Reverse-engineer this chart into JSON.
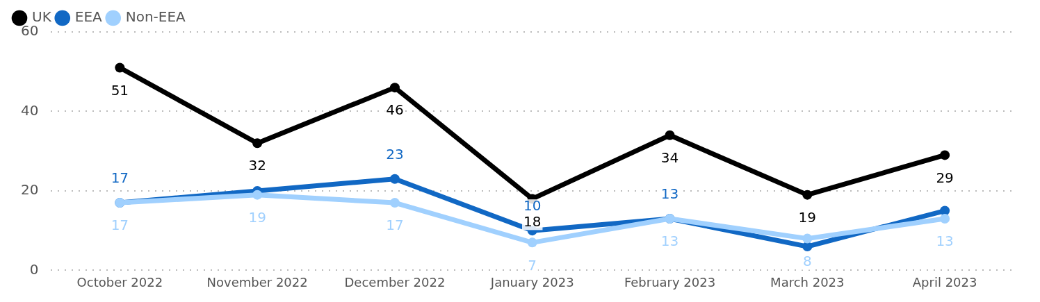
{
  "chart_data": {
    "type": "line",
    "categories": [
      "October 2022",
      "November 2022",
      "December 2022",
      "January 2023",
      "February 2023",
      "March 2023",
      "April 2023"
    ],
    "series": [
      {
        "name": "UK",
        "color": "#000000",
        "values": [
          51,
          32,
          46,
          18,
          34,
          19,
          29
        ],
        "value_labels": [
          "51",
          "32",
          "46",
          "18",
          "34",
          "19",
          "29"
        ]
      },
      {
        "name": "EEA",
        "color": "#1168c4",
        "values": [
          17,
          20,
          23,
          10,
          13,
          6,
          15
        ],
        "value_labels": [
          "17",
          null,
          "23",
          "10",
          "13",
          null,
          null
        ]
      },
      {
        "name": "Non-EEA",
        "color": "#a0d0fe",
        "values": [
          17,
          19,
          17,
          7,
          13,
          8,
          13
        ],
        "value_labels": [
          "17",
          "19",
          "17",
          "7",
          "13",
          "8",
          "13"
        ]
      }
    ],
    "ylim": [
      0,
      60
    ],
    "yticks": [
      0,
      20,
      40,
      60
    ],
    "grid": "y",
    "legend": "top left",
    "marker": "circle",
    "line_style": "solid"
  }
}
